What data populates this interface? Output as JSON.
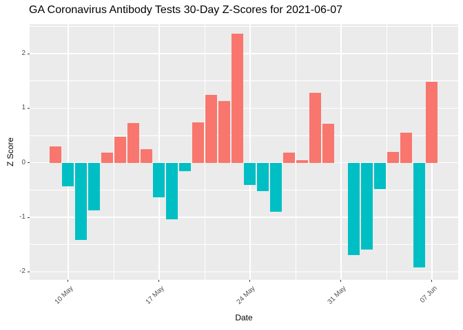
{
  "chart_data": {
    "type": "bar",
    "title": "GA Coronavirus Antibody Tests 30-Day Z-Scores for 2021-06-07",
    "xlabel": "Date",
    "ylabel": "Z Score",
    "ylim": [
      -2.15,
      2.54
    ],
    "grid": true,
    "legend": "none",
    "y_major_ticks": [
      2,
      1,
      0,
      -1,
      -2
    ],
    "y_major_tick_labels": [
      "2",
      "1",
      "0",
      "-1",
      "-2"
    ],
    "y_minor_ticks": [
      2.5,
      1.5,
      0.5,
      -0.5,
      -1.5
    ],
    "x_tick_days": [
      1,
      8,
      15,
      22,
      29
    ],
    "x_tick_labels": [
      "10 May",
      "17 May",
      "24 May",
      "31 May",
      "07 Jun"
    ],
    "x_minor_days": [
      4.5,
      11.5,
      18.5,
      25.5
    ],
    "colors": {
      "positive_bar": "#F8766D",
      "negative_bar": "#00BFC4",
      "panel_background": "#EBEBEB",
      "gridline": "#FFFFFF",
      "tick_text": "#4D4D4D",
      "tick_mark": "#333333",
      "title_text": "#000000"
    },
    "bars": [
      {
        "date": "09 May",
        "value": 0.3
      },
      {
        "date": "10 May",
        "value": -0.43
      },
      {
        "date": "11 May",
        "value": -1.42
      },
      {
        "date": "12 May",
        "value": -0.87
      },
      {
        "date": "13 May",
        "value": 0.19
      },
      {
        "date": "14 May",
        "value": 0.48
      },
      {
        "date": "15 May",
        "value": 0.73
      },
      {
        "date": "16 May",
        "value": 0.25
      },
      {
        "date": "17 May",
        "value": -0.64
      },
      {
        "date": "18 May",
        "value": -1.04
      },
      {
        "date": "19 May",
        "value": -0.15
      },
      {
        "date": "20 May",
        "value": 0.74
      },
      {
        "date": "21 May",
        "value": 1.25
      },
      {
        "date": "22 May",
        "value": 1.13
      },
      {
        "date": "23 May",
        "value": 2.36
      },
      {
        "date": "24 May",
        "value": -0.41
      },
      {
        "date": "25 May",
        "value": -0.52
      },
      {
        "date": "26 May",
        "value": -0.9
      },
      {
        "date": "27 May",
        "value": 0.19
      },
      {
        "date": "28 May",
        "value": 0.05
      },
      {
        "date": "29 May",
        "value": 1.28
      },
      {
        "date": "30 May",
        "value": 0.71
      },
      {
        "date": "31 May",
        "value": null
      },
      {
        "date": "01 Jun",
        "value": -1.69
      },
      {
        "date": "02 Jun",
        "value": -1.59
      },
      {
        "date": "03 Jun",
        "value": -0.48
      },
      {
        "date": "04 Jun",
        "value": 0.2
      },
      {
        "date": "05 Jun",
        "value": 0.55
      },
      {
        "date": "06 Jun",
        "value": -1.92
      },
      {
        "date": "07 Jun",
        "value": 1.48
      }
    ]
  }
}
